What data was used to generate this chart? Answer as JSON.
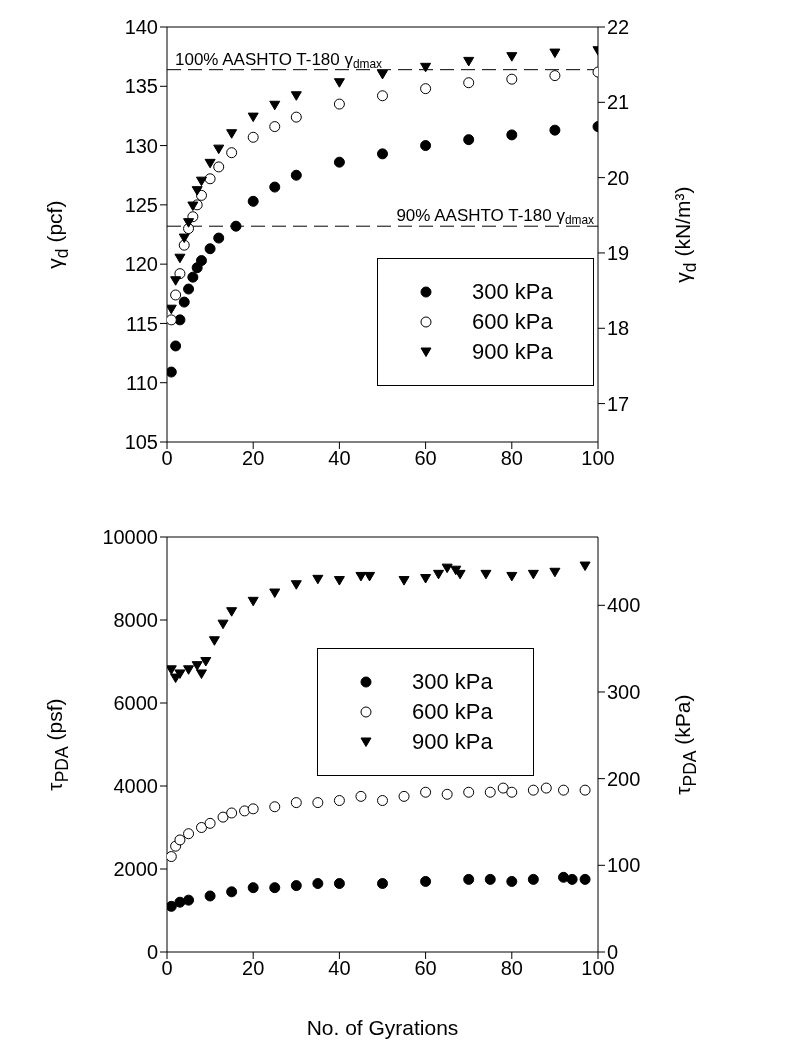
{
  "chart_data": [
    {
      "type": "scatter",
      "ylabel": "γ$_{d}$ (pcf)",
      "y2label": "γ$_{d}$ (kN/m³)",
      "xlim": [
        0,
        100
      ],
      "xticks": [
        0,
        20,
        40,
        60,
        80,
        100
      ],
      "ylim": [
        105,
        140
      ],
      "yticks": [
        105,
        110,
        115,
        120,
        125,
        130,
        135,
        140
      ],
      "y2lim": [
        16.49,
        22.0
      ],
      "y2ticks": [
        17,
        18,
        19,
        20,
        21,
        22
      ],
      "grid": false,
      "legend": "right",
      "ref_lines": [
        {
          "axis": "y",
          "value": 136.4,
          "label": "100% AASHTO T-180 γ$_{dmax}$",
          "line_style": "dashed"
        },
        {
          "axis": "y",
          "value": 123.2,
          "label": "90% AASHTO T-180 γ$_{dmax}$",
          "line_style": "dashed"
        }
      ],
      "series": [
        {
          "name": "300 kPa",
          "color": "#000000",
          "marker": "circle",
          "x": [
            1,
            2,
            3,
            4,
            5,
            6,
            7,
            8,
            10,
            12,
            16,
            20,
            25,
            30,
            40,
            50,
            60,
            70,
            80,
            90,
            100
          ],
          "values": [
            110.9,
            113.1,
            115.3,
            116.8,
            117.9,
            118.9,
            119.7,
            120.3,
            121.3,
            122.2,
            123.2,
            125.3,
            126.5,
            127.5,
            128.6,
            129.3,
            130.0,
            130.5,
            130.9,
            131.3,
            131.6
          ]
        },
        {
          "name": "600 kPa",
          "color": "#ffffff",
          "marker": "circle",
          "x": [
            1,
            2,
            3,
            4,
            5,
            6,
            7,
            8,
            10,
            12,
            15,
            20,
            25,
            30,
            40,
            50,
            60,
            70,
            80,
            90,
            100
          ],
          "values": [
            115.3,
            117.4,
            119.2,
            121.6,
            123.0,
            124.0,
            125.0,
            125.8,
            127.2,
            128.2,
            129.4,
            130.7,
            131.6,
            132.4,
            133.5,
            134.2,
            134.8,
            135.3,
            135.6,
            135.9,
            136.2
          ]
        },
        {
          "name": "900 kPa",
          "color": "#000000",
          "marker": "triangle",
          "x": [
            1,
            2,
            3,
            4,
            5,
            6,
            7,
            8,
            10,
            12,
            15,
            20,
            25,
            30,
            40,
            50,
            60,
            70,
            80,
            90,
            100
          ],
          "values": [
            116.2,
            118.6,
            120.5,
            122.2,
            123.5,
            124.9,
            126.2,
            127.0,
            128.5,
            129.7,
            131.0,
            132.4,
            133.4,
            134.2,
            135.3,
            136.0,
            136.6,
            137.1,
            137.5,
            137.8,
            138.0
          ]
        }
      ]
    },
    {
      "type": "scatter",
      "xlabel": "No. of Gyrations",
      "ylabel": "τ$_{PDA}$ (psf)",
      "y2label": "τ$_{PDA}$ (kPa)",
      "xlim": [
        0,
        100
      ],
      "xticks": [
        0,
        20,
        40,
        60,
        80,
        100
      ],
      "ylim": [
        0,
        10000
      ],
      "yticks": [
        0,
        2000,
        4000,
        6000,
        8000,
        10000
      ],
      "y2lim": [
        0,
        478.8
      ],
      "y2ticks": [
        0,
        100,
        200,
        300,
        400
      ],
      "grid": false,
      "legend": "center",
      "series": [
        {
          "name": "300 kPa",
          "color": "#000000",
          "marker": "circle",
          "x": [
            1,
            3,
            5,
            10,
            15,
            20,
            25,
            30,
            35,
            40,
            50,
            60,
            70,
            75,
            80,
            85,
            92,
            94,
            97
          ],
          "values": [
            1100,
            1200,
            1250,
            1350,
            1450,
            1550,
            1550,
            1600,
            1650,
            1650,
            1650,
            1700,
            1750,
            1750,
            1700,
            1750,
            1800,
            1750,
            1750
          ]
        },
        {
          "name": "600 kPa",
          "color": "#ffffff",
          "marker": "circle",
          "x": [
            1,
            2,
            3,
            5,
            8,
            10,
            13,
            15,
            18,
            20,
            25,
            30,
            35,
            40,
            45,
            50,
            55,
            60,
            65,
            70,
            75,
            78,
            80,
            85,
            88,
            92,
            97
          ],
          "values": [
            2300,
            2550,
            2700,
            2850,
            3000,
            3100,
            3250,
            3350,
            3400,
            3450,
            3500,
            3600,
            3600,
            3650,
            3750,
            3650,
            3750,
            3850,
            3800,
            3850,
            3850,
            3950,
            3850,
            3900,
            3950,
            3900,
            3900
          ]
        },
        {
          "name": "900 kPa",
          "color": "#000000",
          "marker": "triangle",
          "x": [
            1,
            2,
            3,
            5,
            7,
            8,
            9,
            11,
            13,
            15,
            20,
            25,
            30,
            35,
            40,
            45,
            47,
            50,
            55,
            60,
            63,
            65,
            67,
            68,
            70,
            74,
            80,
            85,
            90,
            97
          ],
          "values": [
            6800,
            6600,
            6700,
            6800,
            6900,
            6700,
            7000,
            7500,
            7900,
            8200,
            8450,
            8650,
            8850,
            8980,
            8950,
            9050,
            9050,
            null,
            8950,
            9000,
            9100,
            9250,
            9200,
            9100,
            null,
            9100,
            9050,
            9100,
            9150,
            9300
          ]
        }
      ]
    }
  ]
}
